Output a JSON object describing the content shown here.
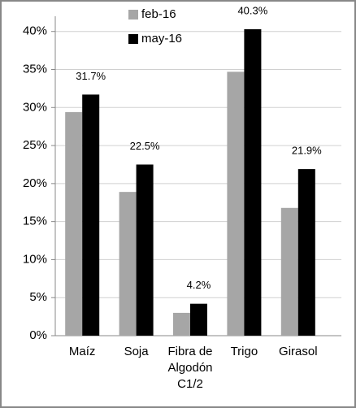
{
  "chart_data": {
    "type": "bar",
    "categories": [
      "Maíz",
      "Soja",
      "Fibra de Algodón C1/2",
      "Trigo",
      "Girasol"
    ],
    "series": [
      {
        "name": "feb-16",
        "color": "#a6a6a6",
        "values": [
          29.4,
          18.9,
          3.0,
          34.7,
          16.8
        ]
      },
      {
        "name": "may-16",
        "color": "#000000",
        "values": [
          31.7,
          22.5,
          4.2,
          40.3,
          21.9
        ],
        "value_labels": [
          "31.7%",
          "22.5%",
          "4.2%",
          "40.3%",
          "21.9%"
        ]
      }
    ],
    "ylim": [
      0,
      42
    ],
    "yticks": [
      {
        "value": 0,
        "label": "0%"
      },
      {
        "value": 5,
        "label": "5%"
      },
      {
        "value": 10,
        "label": "10%"
      },
      {
        "value": 15,
        "label": "15%"
      },
      {
        "value": 20,
        "label": "20%"
      },
      {
        "value": 25,
        "label": "25%"
      },
      {
        "value": 30,
        "label": "30%"
      },
      {
        "value": 35,
        "label": "35%"
      },
      {
        "value": 40,
        "label": "40%"
      }
    ],
    "grid": true
  }
}
